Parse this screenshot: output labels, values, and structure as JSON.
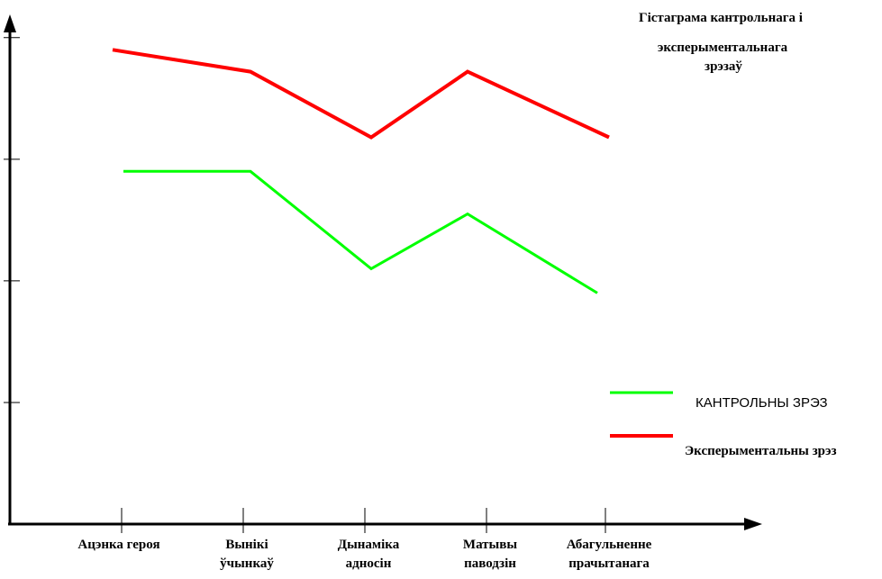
{
  "chart_data": {
    "type": "line",
    "title_lines": [
      "Гістаграма кантрольнага і",
      "эксперыментальнага",
      "зрэзаў"
    ],
    "categories": [
      [
        "Ацэнка героя"
      ],
      [
        "Вынікі",
        "ўчынкаў"
      ],
      [
        "Дынаміка",
        "адносін"
      ],
      [
        "Матывы",
        "паводзін"
      ],
      [
        "Абагульненне",
        "прачытанага"
      ]
    ],
    "ylim": [
      0,
      4.25
    ],
    "series": [
      {
        "name": "КАНТРОЛЬНЫ ЗРЭЗ",
        "color": "#00ff00",
        "values": [
          2.9,
          2.9,
          2.1,
          2.55,
          1.9
        ]
      },
      {
        "name": "Эксперыментальны зрэз",
        "color": "#ff0000",
        "values": [
          3.9,
          3.72,
          3.18,
          3.72,
          3.18
        ]
      }
    ],
    "grid": false,
    "legend_position": "right"
  }
}
